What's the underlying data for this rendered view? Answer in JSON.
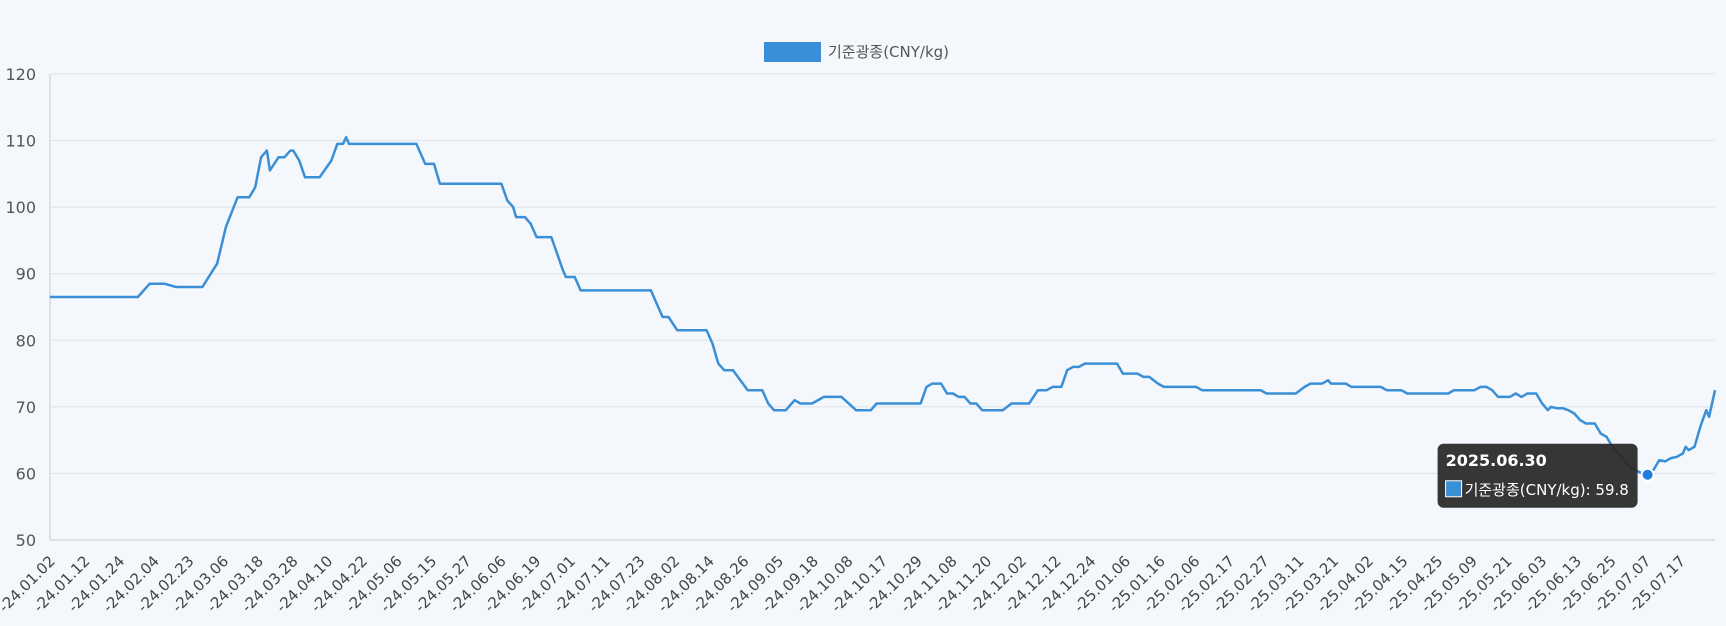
{
  "chart_data": {
    "type": "line",
    "legend": {
      "label": "기준광종(CNY/kg)",
      "position": "top-center"
    },
    "series": [
      {
        "name": "기준광종(CNY/kg)",
        "color": "#3a8fd6",
        "points": [
          [
            "2024-01-02",
            86.5
          ],
          [
            "2024-02-01",
            86.5
          ],
          [
            "2024-02-05",
            88.5
          ],
          [
            "2024-02-10",
            88.5
          ],
          [
            "2024-02-14",
            88.0
          ],
          [
            "2024-02-23",
            88.0
          ],
          [
            "2024-02-28",
            91.5
          ],
          [
            "2024-03-02",
            97.0
          ],
          [
            "2024-03-06",
            101.5
          ],
          [
            "2024-03-08",
            101.5
          ],
          [
            "2024-03-10",
            101.5
          ],
          [
            "2024-03-12",
            103.0
          ],
          [
            "2024-03-14",
            107.5
          ],
          [
            "2024-03-16",
            108.5
          ],
          [
            "2024-03-17",
            105.5
          ],
          [
            "2024-03-20",
            107.5
          ],
          [
            "2024-03-22",
            107.5
          ],
          [
            "2024-03-24",
            108.5
          ],
          [
            "2024-03-25",
            108.5
          ],
          [
            "2024-03-27",
            107.0
          ],
          [
            "2024-03-29",
            104.5
          ],
          [
            "2024-04-03",
            104.5
          ],
          [
            "2024-04-07",
            107.0
          ],
          [
            "2024-04-09",
            109.5
          ],
          [
            "2024-04-11",
            109.5
          ],
          [
            "2024-04-12",
            110.5
          ],
          [
            "2024-04-13",
            109.5
          ],
          [
            "2024-05-06",
            109.5
          ],
          [
            "2024-05-09",
            106.5
          ],
          [
            "2024-05-12",
            106.5
          ],
          [
            "2024-05-14",
            103.5
          ],
          [
            "2024-06-04",
            103.5
          ],
          [
            "2024-06-06",
            101.0
          ],
          [
            "2024-06-08",
            100.0
          ],
          [
            "2024-06-09",
            98.5
          ],
          [
            "2024-06-12",
            98.5
          ],
          [
            "2024-06-14",
            97.5
          ],
          [
            "2024-06-16",
            95.5
          ],
          [
            "2024-06-21",
            95.5
          ],
          [
            "2024-06-25",
            90.5
          ],
          [
            "2024-06-26",
            89.5
          ],
          [
            "2024-06-29",
            89.5
          ],
          [
            "2024-07-01",
            87.5
          ],
          [
            "2024-07-25",
            87.5
          ],
          [
            "2024-07-29",
            83.5
          ],
          [
            "2024-07-31",
            83.5
          ],
          [
            "2024-08-03",
            81.5
          ],
          [
            "2024-08-13",
            81.5
          ],
          [
            "2024-08-15",
            79.5
          ],
          [
            "2024-08-17",
            76.5
          ],
          [
            "2024-08-19",
            75.5
          ],
          [
            "2024-08-22",
            75.5
          ],
          [
            "2024-08-27",
            72.5
          ],
          [
            "2024-09-01",
            72.5
          ],
          [
            "2024-09-03",
            70.5
          ],
          [
            "2024-09-05",
            69.5
          ],
          [
            "2024-09-09",
            69.5
          ],
          [
            "2024-09-12",
            71.0
          ],
          [
            "2024-09-14",
            70.5
          ],
          [
            "2024-09-18",
            70.5
          ],
          [
            "2024-09-22",
            71.5
          ],
          [
            "2024-09-28",
            71.5
          ],
          [
            "2024-10-03",
            69.5
          ],
          [
            "2024-10-08",
            69.5
          ],
          [
            "2024-10-10",
            70.5
          ],
          [
            "2024-10-25",
            70.5
          ],
          [
            "2024-10-27",
            73.0
          ],
          [
            "2024-10-29",
            73.5
          ],
          [
            "2024-11-01",
            73.5
          ],
          [
            "2024-11-03",
            72.0
          ],
          [
            "2024-11-05",
            72.0
          ],
          [
            "2024-11-07",
            71.5
          ],
          [
            "2024-11-09",
            71.5
          ],
          [
            "2024-11-11",
            70.5
          ],
          [
            "2024-11-13",
            70.5
          ],
          [
            "2024-11-15",
            69.5
          ],
          [
            "2024-11-22",
            69.5
          ],
          [
            "2024-11-25",
            70.5
          ],
          [
            "2024-12-01",
            70.5
          ],
          [
            "2024-12-04",
            72.5
          ],
          [
            "2024-12-07",
            72.5
          ],
          [
            "2024-12-09",
            73.0
          ],
          [
            "2024-12-12",
            73.0
          ],
          [
            "2024-12-14",
            75.5
          ],
          [
            "2024-12-16",
            76.0
          ],
          [
            "2024-12-18",
            76.0
          ],
          [
            "2024-12-20",
            76.5
          ],
          [
            "2024-12-31",
            76.5
          ],
          [
            "2025-01-02",
            75.0
          ],
          [
            "2025-01-07",
            75.0
          ],
          [
            "2025-01-09",
            74.5
          ],
          [
            "2025-01-11",
            74.5
          ],
          [
            "2025-01-14",
            73.5
          ],
          [
            "2025-01-16",
            73.0
          ],
          [
            "2025-01-27",
            73.0
          ],
          [
            "2025-01-29",
            72.5
          ],
          [
            "2025-02-18",
            72.5
          ],
          [
            "2025-02-20",
            72.0
          ],
          [
            "2025-03-02",
            72.0
          ],
          [
            "2025-03-05",
            73.0
          ],
          [
            "2025-03-07",
            73.5
          ],
          [
            "2025-03-11",
            73.5
          ],
          [
            "2025-03-13",
            74.0
          ],
          [
            "2025-03-14",
            73.5
          ],
          [
            "2025-03-19",
            73.5
          ],
          [
            "2025-03-21",
            73.0
          ],
          [
            "2025-03-31",
            73.0
          ],
          [
            "2025-04-02",
            72.5
          ],
          [
            "2025-04-07",
            72.5
          ],
          [
            "2025-04-09",
            72.0
          ],
          [
            "2025-04-23",
            72.0
          ],
          [
            "2025-04-25",
            72.5
          ],
          [
            "2025-05-02",
            72.5
          ],
          [
            "2025-05-04",
            73.0
          ],
          [
            "2025-05-06",
            73.0
          ],
          [
            "2025-05-08",
            72.5
          ],
          [
            "2025-05-10",
            71.5
          ],
          [
            "2025-05-14",
            71.5
          ],
          [
            "2025-05-16",
            72.0
          ],
          [
            "2025-05-18",
            71.5
          ],
          [
            "2025-05-20",
            72.0
          ],
          [
            "2025-05-23",
            72.0
          ],
          [
            "2025-05-25",
            70.5
          ],
          [
            "2025-05-27",
            69.5
          ],
          [
            "2025-05-28",
            70.0
          ],
          [
            "2025-05-30",
            69.8
          ],
          [
            "2025-06-01",
            69.8
          ],
          [
            "2025-06-03",
            69.5
          ],
          [
            "2025-06-05",
            69.0
          ],
          [
            "2025-06-07",
            68.0
          ],
          [
            "2025-06-09",
            67.5
          ],
          [
            "2025-06-12",
            67.5
          ],
          [
            "2025-06-14",
            66.0
          ],
          [
            "2025-06-16",
            65.5
          ],
          [
            "2025-06-18",
            64.0
          ],
          [
            "2025-06-20",
            63.0
          ],
          [
            "2025-06-22",
            62.0
          ],
          [
            "2025-06-24",
            61.0
          ],
          [
            "2025-06-26",
            60.5
          ],
          [
            "2025-06-28",
            60.0
          ],
          [
            "2025-06-30",
            59.8
          ],
          [
            "2025-07-02",
            60.5
          ],
          [
            "2025-07-04",
            62.0
          ],
          [
            "2025-07-06",
            61.8
          ],
          [
            "2025-07-08",
            62.3
          ],
          [
            "2025-07-10",
            62.5
          ],
          [
            "2025-07-12",
            63.0
          ],
          [
            "2025-07-13",
            64.0
          ],
          [
            "2025-07-14",
            63.5
          ],
          [
            "2025-07-16",
            64.0
          ],
          [
            "2025-07-18",
            67.0
          ],
          [
            "2025-07-20",
            69.5
          ],
          [
            "2025-07-21",
            68.5
          ],
          [
            "2025-07-23",
            72.5
          ]
        ]
      }
    ],
    "x_tick_labels": [
      "-24.01.02",
      "-24.01.12",
      "-24.01.24",
      "-24.02.04",
      "-24.02.23",
      "-24.03.06",
      "-24.03.18",
      "-24.03.28",
      "-24.04.10",
      "-24.04.22",
      "-24.05.06",
      "-24.05.15",
      "-24.05.27",
      "-24.06.06",
      "-24.06.19",
      "-24.07.01",
      "-24.07.11",
      "-24.07.23",
      "-24.08.02",
      "-24.08.14",
      "-24.08.26",
      "-24.09.05",
      "-24.09.18",
      "-24.10.08",
      "-24.10.17",
      "-24.10.29",
      "-24.11.08",
      "-24.11.20",
      "-24.12.02",
      "-24.12.12",
      "-24.12.24",
      "-25.01.06",
      "-25.01.16",
      "-25.02.06",
      "-25.02.17",
      "-25.02.27",
      "-25.03.11",
      "-25.03.21",
      "-25.04.02",
      "-25.04.15",
      "-25.04.25",
      "-25.05.09",
      "-25.05.21",
      "-25.06.03",
      "-25.06.13",
      "-25.06.25",
      "-25.07.07",
      "-25.07.17"
    ],
    "y_ticks": [
      50,
      60,
      70,
      80,
      90,
      100,
      110,
      120
    ],
    "ylim": [
      50,
      120
    ],
    "grid": true,
    "tooltip": {
      "date": "2025.06.30",
      "label": "기준광종(CNY/kg): 59.8",
      "point": [
        "2025-06-30",
        59.8
      ]
    }
  }
}
